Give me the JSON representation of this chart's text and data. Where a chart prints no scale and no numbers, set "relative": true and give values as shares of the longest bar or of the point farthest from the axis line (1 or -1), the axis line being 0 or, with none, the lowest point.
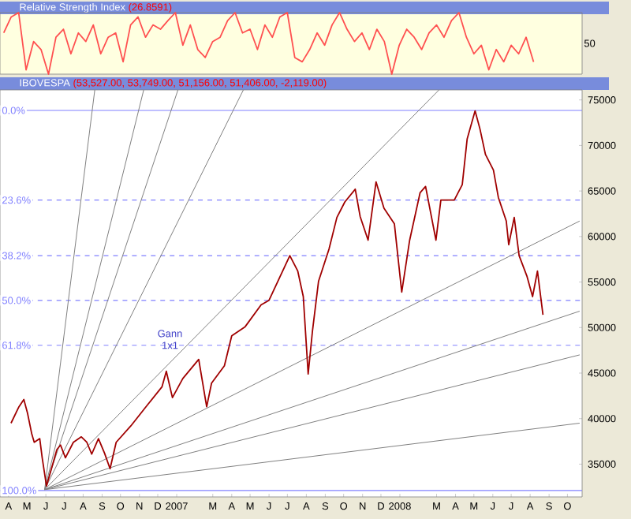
{
  "chart_data": [
    {
      "type": "line",
      "title": "Relative Strength Index",
      "subtitle": "(26.8591)",
      "relative": true,
      "annotations": [
        "50"
      ],
      "categories": [
        null,
        null,
        null,
        null,
        null,
        null,
        null,
        null,
        null,
        null,
        null,
        null,
        null,
        null,
        null,
        null,
        null,
        null,
        null,
        null,
        null,
        null,
        null,
        null,
        null,
        null,
        null,
        null,
        null,
        null,
        null,
        null,
        null,
        null,
        null,
        null,
        null,
        null,
        null,
        null,
        null,
        null,
        null,
        null,
        null,
        null,
        null,
        null,
        null,
        null,
        null,
        null,
        null,
        null,
        null,
        null,
        null,
        null,
        null,
        null,
        null,
        null,
        null,
        null,
        null,
        null,
        null,
        null,
        null,
        null,
        null,
        null,
        null,
        null,
        null,
        null,
        null,
        null
      ],
      "series": [
        {
          "color": "#ff5050",
          "values": [
            0.67,
            0.93,
            1,
            0.07,
            0.53,
            0.4,
            0,
            0.6,
            0.73,
            0.33,
            0.67,
            0.53,
            0.8,
            0.33,
            0.6,
            0.67,
            0.2,
            0.8,
            0.93,
            0.6,
            0.8,
            0.73,
            0.87,
            1,
            0.47,
            0.8,
            0.4,
            0.27,
            0.53,
            0.6,
            0.87,
            1,
            0.67,
            0.73,
            0.4,
            0.8,
            0.6,
            0.93,
            1,
            0.27,
            0.2,
            0.4,
            0.67,
            0.47,
            0.8,
            1,
            0.73,
            0.53,
            0.67,
            0.4,
            0.73,
            0.53,
            0,
            0.47,
            0.73,
            0.6,
            0.4,
            0.67,
            0.8,
            0.6,
            0.87,
            1,
            0.6,
            0.33,
            0.47,
            0.07,
            0.4,
            0.2,
            0.47,
            0.33,
            0.6,
            0.2,
            null,
            null,
            null,
            null,
            null,
            null
          ]
        }
      ]
    },
    {
      "type": "line",
      "title": "IBOVESPA",
      "subtitle": "(53,527.00, 53,749.00, 51,156.00, 51,406.00, -2,119.00)",
      "xlim": [
        "2006-04-01",
        "2008-11-08"
      ],
      "ylim": [
        31400,
        76100
      ],
      "y2lim": [
        101.7,
        -5.4
      ],
      "xticks": [
        {
          "value": "2006-04-15",
          "label": "A"
        },
        {
          "value": "2006-05-15",
          "label": "M"
        },
        {
          "value": "2006-06-15",
          "label": "J"
        },
        {
          "value": "2006-07-15",
          "label": "J"
        },
        {
          "value": "2006-08-15",
          "label": "A"
        },
        {
          "value": "2006-09-15",
          "label": "S"
        },
        {
          "value": "2006-10-15",
          "label": "O"
        },
        {
          "value": "2006-11-15",
          "label": "N"
        },
        {
          "value": "2006-12-15",
          "label": "D"
        },
        {
          "value": "2007-01-15",
          "label": "2007"
        },
        {
          "value": "2007-03-15",
          "label": "M"
        },
        {
          "value": "2007-04-15",
          "label": "A"
        },
        {
          "value": "2007-05-15",
          "label": "M"
        },
        {
          "value": "2007-06-15",
          "label": "J"
        },
        {
          "value": "2007-07-15",
          "label": "J"
        },
        {
          "value": "2007-08-15",
          "label": "A"
        },
        {
          "value": "2007-09-15",
          "label": "S"
        },
        {
          "value": "2007-10-15",
          "label": "O"
        },
        {
          "value": "2007-11-15",
          "label": "N"
        },
        {
          "value": "2007-12-15",
          "label": "D"
        },
        {
          "value": "2008-01-15",
          "label": "2008"
        },
        {
          "value": "2008-03-15",
          "label": "M"
        },
        {
          "value": "2008-04-15",
          "label": "A"
        },
        {
          "value": "2008-05-15",
          "label": "M"
        },
        {
          "value": "2008-06-15",
          "label": "J"
        },
        {
          "value": "2008-07-15",
          "label": "J"
        },
        {
          "value": "2008-08-15",
          "label": "A"
        },
        {
          "value": "2008-09-15",
          "label": "S"
        },
        {
          "value": "2008-10-15",
          "label": "O"
        }
      ],
      "yticks": [
        35000,
        40000,
        45000,
        50000,
        55000,
        60000,
        65000,
        70000,
        75000
      ],
      "ref_lines": [
        {
          "axis": "y2",
          "value": 0,
          "label": "0.0%",
          "color": "#8080ff",
          "line_style": "solid"
        },
        {
          "axis": "y2",
          "value": 23.6,
          "label": "23.6%",
          "color": "#8080ff",
          "line_style": "dashed"
        },
        {
          "axis": "y2",
          "value": 38.2,
          "label": "38.2%",
          "color": "#8080ff",
          "line_style": "dashed"
        },
        {
          "axis": "y2",
          "value": 50,
          "label": "50.0%",
          "color": "#8080ff",
          "line_style": "dashed"
        },
        {
          "axis": "y2",
          "value": 61.8,
          "label": "61.8%",
          "color": "#8080ff",
          "line_style": "dashed"
        },
        {
          "axis": "y2",
          "value": 100,
          "label": "100.0%",
          "color": "#8080ff",
          "line_style": "solid"
        }
      ],
      "annotations": [
        {
          "text": "Gann 1x1",
          "x": "2007-01-04",
          "y": 48700
        }
      ],
      "series": [
        {
          "color": "#a00000",
          "x": [
            "2006-04-19",
            "2006-05-02",
            "2006-05-10",
            "2006-05-16",
            "2006-05-23",
            "2006-05-27",
            "2006-06-05",
            "2006-06-09",
            "2006-06-16",
            "2006-06-22",
            "2006-07-03",
            "2006-07-09",
            "2006-07-17",
            "2006-07-30",
            "2006-08-12",
            "2006-08-21",
            "2006-08-29",
            "2006-09-09",
            "2006-09-19",
            "2006-09-28",
            "2006-10-08",
            "2006-11-01",
            "2006-11-27",
            "2006-12-22",
            "2006-12-29",
            "2007-01-08",
            "2007-01-25",
            "2007-02-20",
            "2007-03-05",
            "2007-03-13",
            "2007-04-03",
            "2007-04-15",
            "2007-05-07",
            "2007-06-02",
            "2007-06-15",
            "2007-07-19",
            "2007-08-01",
            "2007-08-10",
            "2007-08-18",
            "2007-08-25",
            "2007-09-04",
            "2007-09-21",
            "2007-10-04",
            "2007-10-17",
            "2007-11-03",
            "2007-11-11",
            "2007-11-24",
            "2007-12-07",
            "2007-12-20",
            "2008-01-06",
            "2008-01-18",
            "2008-01-31",
            "2008-02-17",
            "2008-02-26",
            "2008-03-14",
            "2008-03-22",
            "2008-04-13",
            "2008-04-26",
            "2008-05-04",
            "2008-05-17",
            "2008-05-25",
            "2008-06-03",
            "2008-06-16",
            "2008-06-24",
            "2008-07-07",
            "2008-07-11",
            "2008-07-20",
            "2008-07-28",
            "2008-08-10",
            "2008-08-19",
            "2008-08-27",
            "2008-09-05"
          ],
          "values": [
            39500,
            41300,
            42100,
            40600,
            38300,
            37400,
            37800,
            35700,
            32600,
            34000,
            36600,
            37100,
            35700,
            37400,
            38000,
            37400,
            36100,
            37800,
            36200,
            34500,
            37400,
            39200,
            41400,
            43500,
            45200,
            42300,
            44400,
            46500,
            41300,
            43900,
            45800,
            49100,
            50100,
            52500,
            53000,
            57900,
            56200,
            53400,
            44900,
            49600,
            55100,
            58600,
            62100,
            63800,
            65200,
            62200,
            59600,
            66000,
            63100,
            61400,
            53900,
            59600,
            64800,
            65500,
            59600,
            64000,
            64000,
            65700,
            70700,
            73800,
            71800,
            69000,
            67300,
            64300,
            61700,
            59100,
            62100,
            57900,
            55600,
            53400,
            56200,
            51400
          ]
        },
        {
          "color": "#808080",
          "x": [
            "2006-06-13",
            "2006-09-03"
          ],
          "values": [
            32200,
            76100
          ]
        },
        {
          "color": "#808080",
          "x": [
            "2006-06-13",
            "2006-11-22"
          ],
          "values": [
            32200,
            76100
          ]
        },
        {
          "color": "#808080",
          "x": [
            "2006-06-13",
            "2007-01-17"
          ],
          "values": [
            32200,
            76100
          ]
        },
        {
          "color": "#808080",
          "x": [
            "2006-06-13",
            "2007-05-04"
          ],
          "values": [
            32200,
            76100
          ]
        },
        {
          "color": "#808080",
          "x": [
            "2006-06-13",
            "2008-03-19"
          ],
          "values": [
            32200,
            76100
          ]
        },
        {
          "color": "#808080",
          "x": [
            "2006-06-13",
            "2008-11-04"
          ],
          "values": [
            32200,
            61700
          ]
        },
        {
          "color": "#808080",
          "x": [
            "2006-06-13",
            "2008-11-04"
          ],
          "values": [
            32200,
            51800
          ]
        },
        {
          "color": "#808080",
          "x": [
            "2006-06-13",
            "2008-11-04"
          ],
          "values": [
            32200,
            47000
          ]
        },
        {
          "color": "#808080",
          "x": [
            "2006-06-13",
            "2008-11-04"
          ],
          "values": [
            32200,
            39500
          ]
        }
      ]
    }
  ]
}
